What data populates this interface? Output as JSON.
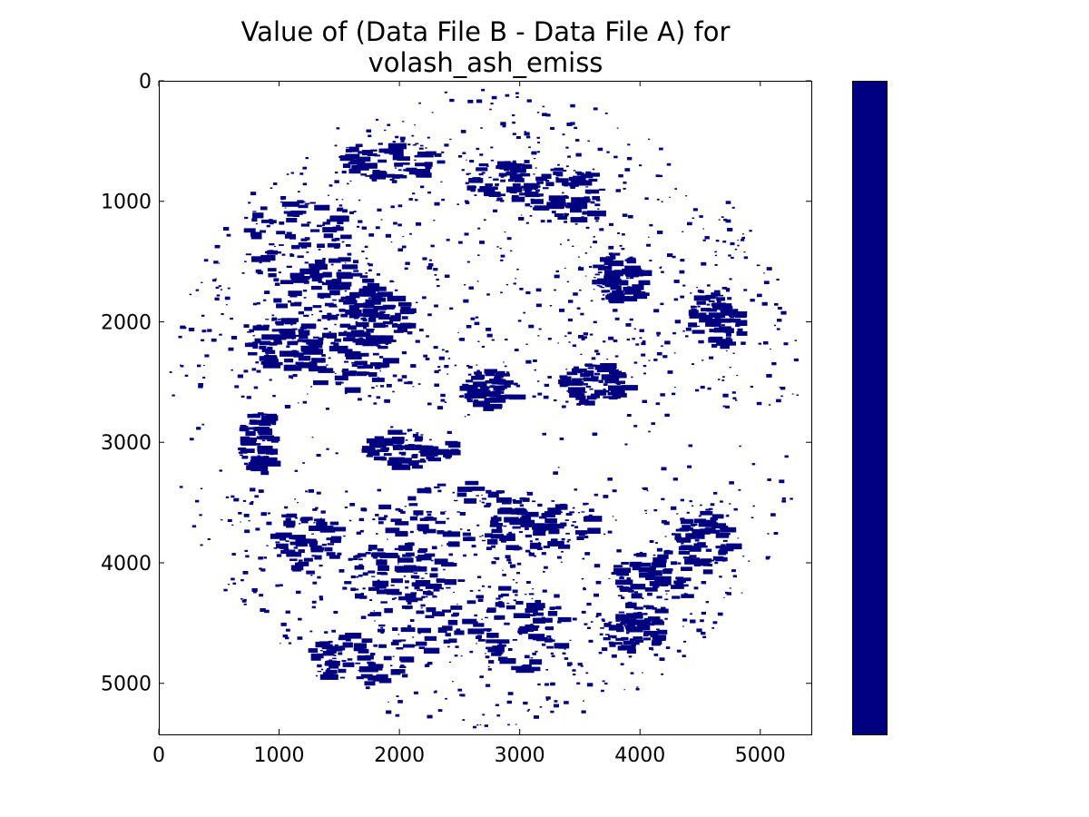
{
  "chart_data": {
    "type": "heatmap",
    "title": "Value of (Data File B - Data File A) for",
    "subtitle": "volash_ash_emiss",
    "xlabel": "",
    "ylabel": "",
    "xlim": [
      0,
      5424
    ],
    "ylim": [
      5424,
      0
    ],
    "x_ticks": [
      "0",
      "1000",
      "2000",
      "3000",
      "4000",
      "5000"
    ],
    "y_ticks": [
      "0",
      "1000",
      "2000",
      "3000",
      "4000",
      "5000"
    ],
    "x_tick_values": [
      0,
      1000,
      2000,
      3000,
      4000,
      5000
    ],
    "y_tick_values": [
      0,
      1000,
      2000,
      3000,
      4000,
      5000
    ],
    "grid": false,
    "colormap": "single-value",
    "data_color": "#000080",
    "background_color": "#ffffff",
    "disk": {
      "center": [
        2710,
        2710
      ],
      "radius": 2680
    },
    "colorbar": {
      "position": "right",
      "ticks": []
    }
  }
}
